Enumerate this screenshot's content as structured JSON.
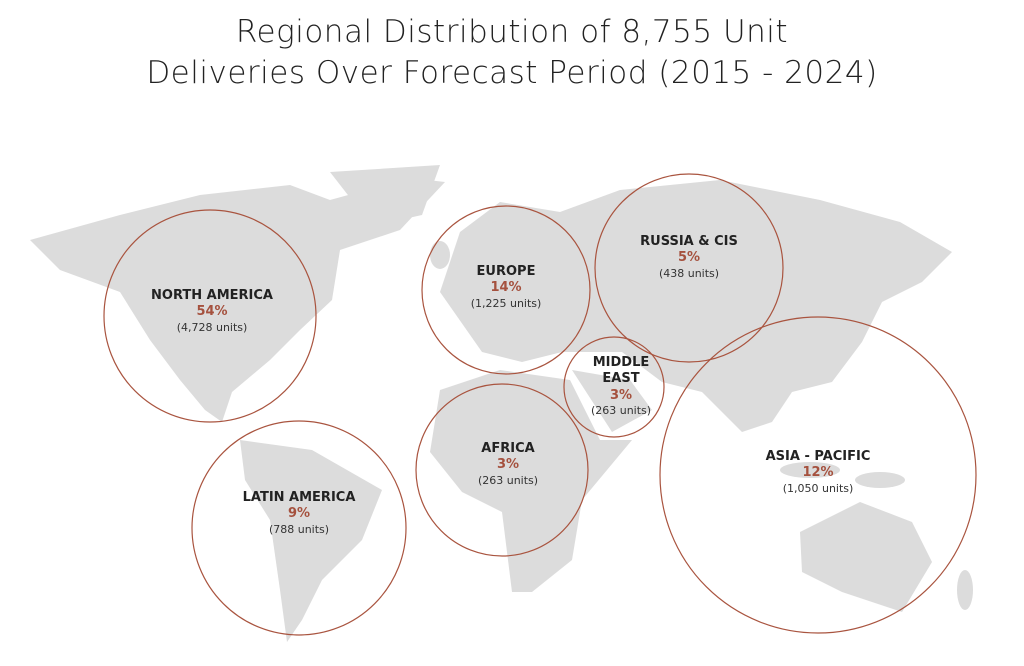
{
  "header": {
    "title_lines": [
      "Regional Distribution of 8,755 Unit",
      "Deliveries Over Forecast Period (2015 - 2024)"
    ]
  },
  "regions": [
    {
      "name": "NORTH AMERICA",
      "share": "54%",
      "units": "(4,728 units)"
    },
    {
      "name": "LATIN AMERICA",
      "share": "9%",
      "units": "(788 units)"
    },
    {
      "name": "EUROPE",
      "share": "14%",
      "units": "(1,225 units)"
    },
    {
      "name": "RUSSIA & CIS",
      "share": "5%",
      "units": "(438 units)"
    },
    {
      "name": "MIDDLE EAST",
      "share": "3%",
      "units": "(263 units)"
    },
    {
      "name": "AFRICA",
      "share": "3%",
      "units": "(263 units)"
    },
    {
      "name": "ASIA - PACIFIC",
      "share": "12%",
      "units": "(1,050 units)"
    }
  ]
}
